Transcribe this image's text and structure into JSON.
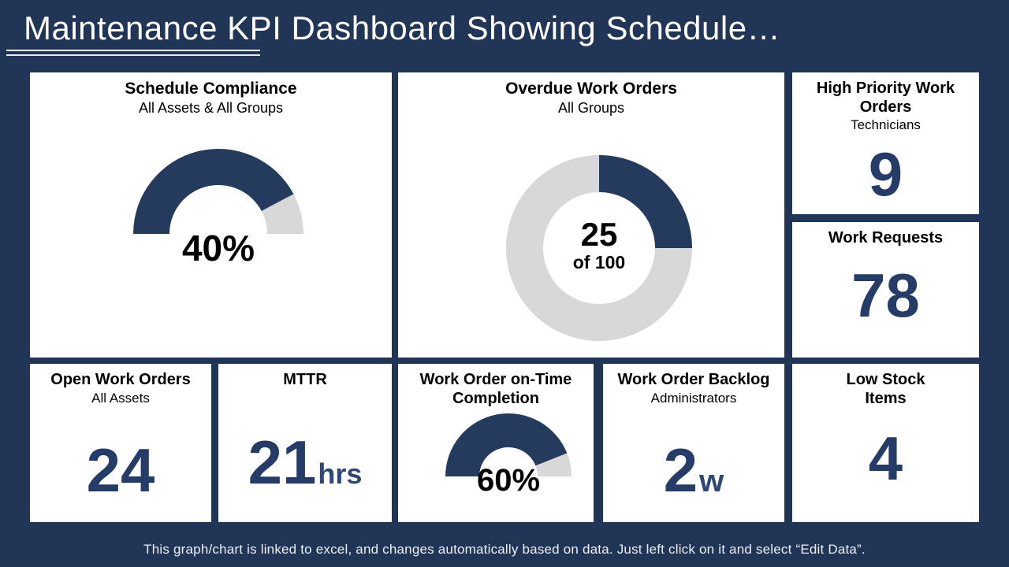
{
  "page": {
    "title": "Maintenance KPI Dashboard Showing Schedule…"
  },
  "footer": {
    "text": "This graph/chart is linked to excel, and changes automatically based on data. Just left click on it and select “Edit Data”."
  },
  "colors": {
    "background": "#213557",
    "card": "#FFFFFF",
    "fill_navy": "#253B5E",
    "fill_grey": "#D8D8D8",
    "number_navy": "#253C69"
  },
  "cards": {
    "schedule_compliance": {
      "title": "Schedule Compliance",
      "subtitle": "All Assets & All Groups"
    },
    "overdue_work_orders": {
      "title": "Overdue Work Orders",
      "subtitle": "All Groups"
    },
    "high_priority": {
      "title": "High Priority Work Orders",
      "subtitle": "Technicians",
      "value": "9"
    },
    "work_requests": {
      "title": "Work Requests",
      "value": "78"
    },
    "open_work_orders": {
      "title": "Open Work Orders",
      "subtitle": "All Assets",
      "value": "24"
    },
    "mttr": {
      "title": "MTTR",
      "value": "21",
      "unit": "hrs"
    },
    "on_time_completion": {
      "title": "Work Order on-Time Completion"
    },
    "work_order_backlog": {
      "title": "Work Order Backlog",
      "subtitle": "Administrators",
      "value": "2",
      "unit": "w"
    },
    "low_stock": {
      "title": "Low Stock Items",
      "value": "4"
    }
  },
  "chart_data": [
    {
      "id": "gauge-schedule",
      "type": "gauge",
      "title": "Schedule Compliance",
      "subtitle": "All Assets & All Groups",
      "label": "40%",
      "value": 40,
      "max": 100,
      "visual_fill_fraction": 0.845,
      "fill_color": "#253B5E",
      "rest_color": "#D8D8D8",
      "shape": "half-donut"
    },
    {
      "id": "donut-overdue",
      "type": "donut",
      "title": "Overdue Work Orders",
      "subtitle": "All Groups",
      "value": 25,
      "total": 100,
      "center_label": "25",
      "center_sublabel": "of 100",
      "start_angle_deg": 90,
      "direction": "clockwise",
      "fill_color": "#253B5E",
      "rest_color": "#D8D8D8"
    },
    {
      "id": "gauge-ontime",
      "type": "gauge",
      "title": "Work Order on-Time Completion",
      "label": "60%",
      "value": 60,
      "max": 100,
      "visual_fill_fraction": 0.88,
      "fill_color": "#253B5E",
      "rest_color": "#D8D8D8",
      "shape": "half-donut"
    }
  ]
}
